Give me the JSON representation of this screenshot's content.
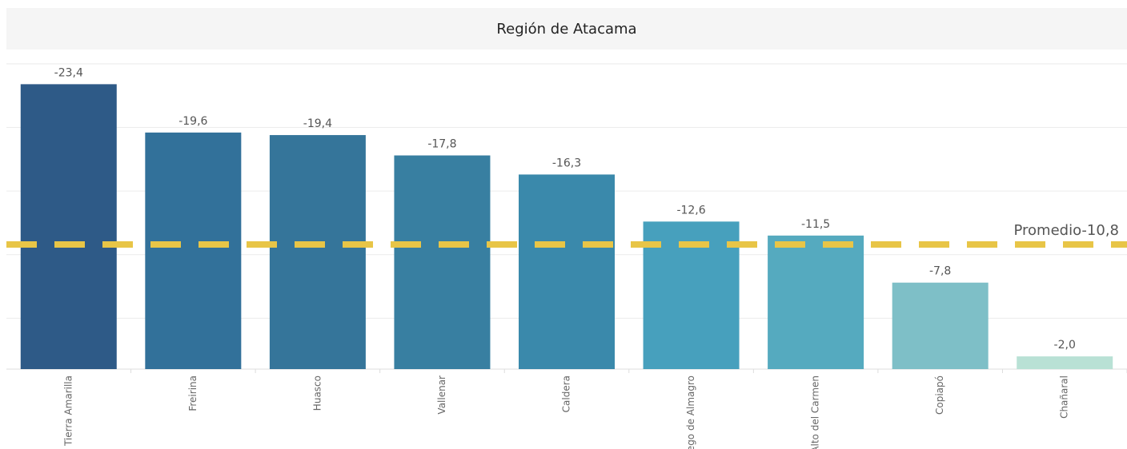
{
  "chart_data": {
    "type": "bar",
    "title": "Región de Atacama",
    "categories": [
      "Tierra Amarilla",
      "Freirina",
      "Huasco",
      "Vallenar",
      "Caldera",
      "Diego de Almagro",
      "Alto del Carmen",
      "Copiapó",
      "Chañaral"
    ],
    "values": [
      -23.4,
      -19.6,
      -19.4,
      -17.8,
      -16.3,
      -12.6,
      -11.5,
      -7.8,
      -2.0
    ],
    "value_labels": [
      "-23,4",
      "-19,6",
      "-19,4",
      "-17,8",
      "-16,3",
      "-12,6",
      "-11,5",
      "-7,8",
      "-2,0"
    ],
    "colors": [
      "#2e5a87",
      "#32719a",
      "#35759a",
      "#387fa1",
      "#3a89ab",
      "#47a0bd",
      "#55aabf",
      "#7ebfc7",
      "#b9e1d5"
    ],
    "ylim": [
      -1,
      -26
    ],
    "yticks": [
      -5,
      -10,
      -15,
      -20,
      -25
    ],
    "grid": true,
    "average": {
      "value": -10.8,
      "label": "Promedio-10,8",
      "color": "#e8c547"
    }
  }
}
